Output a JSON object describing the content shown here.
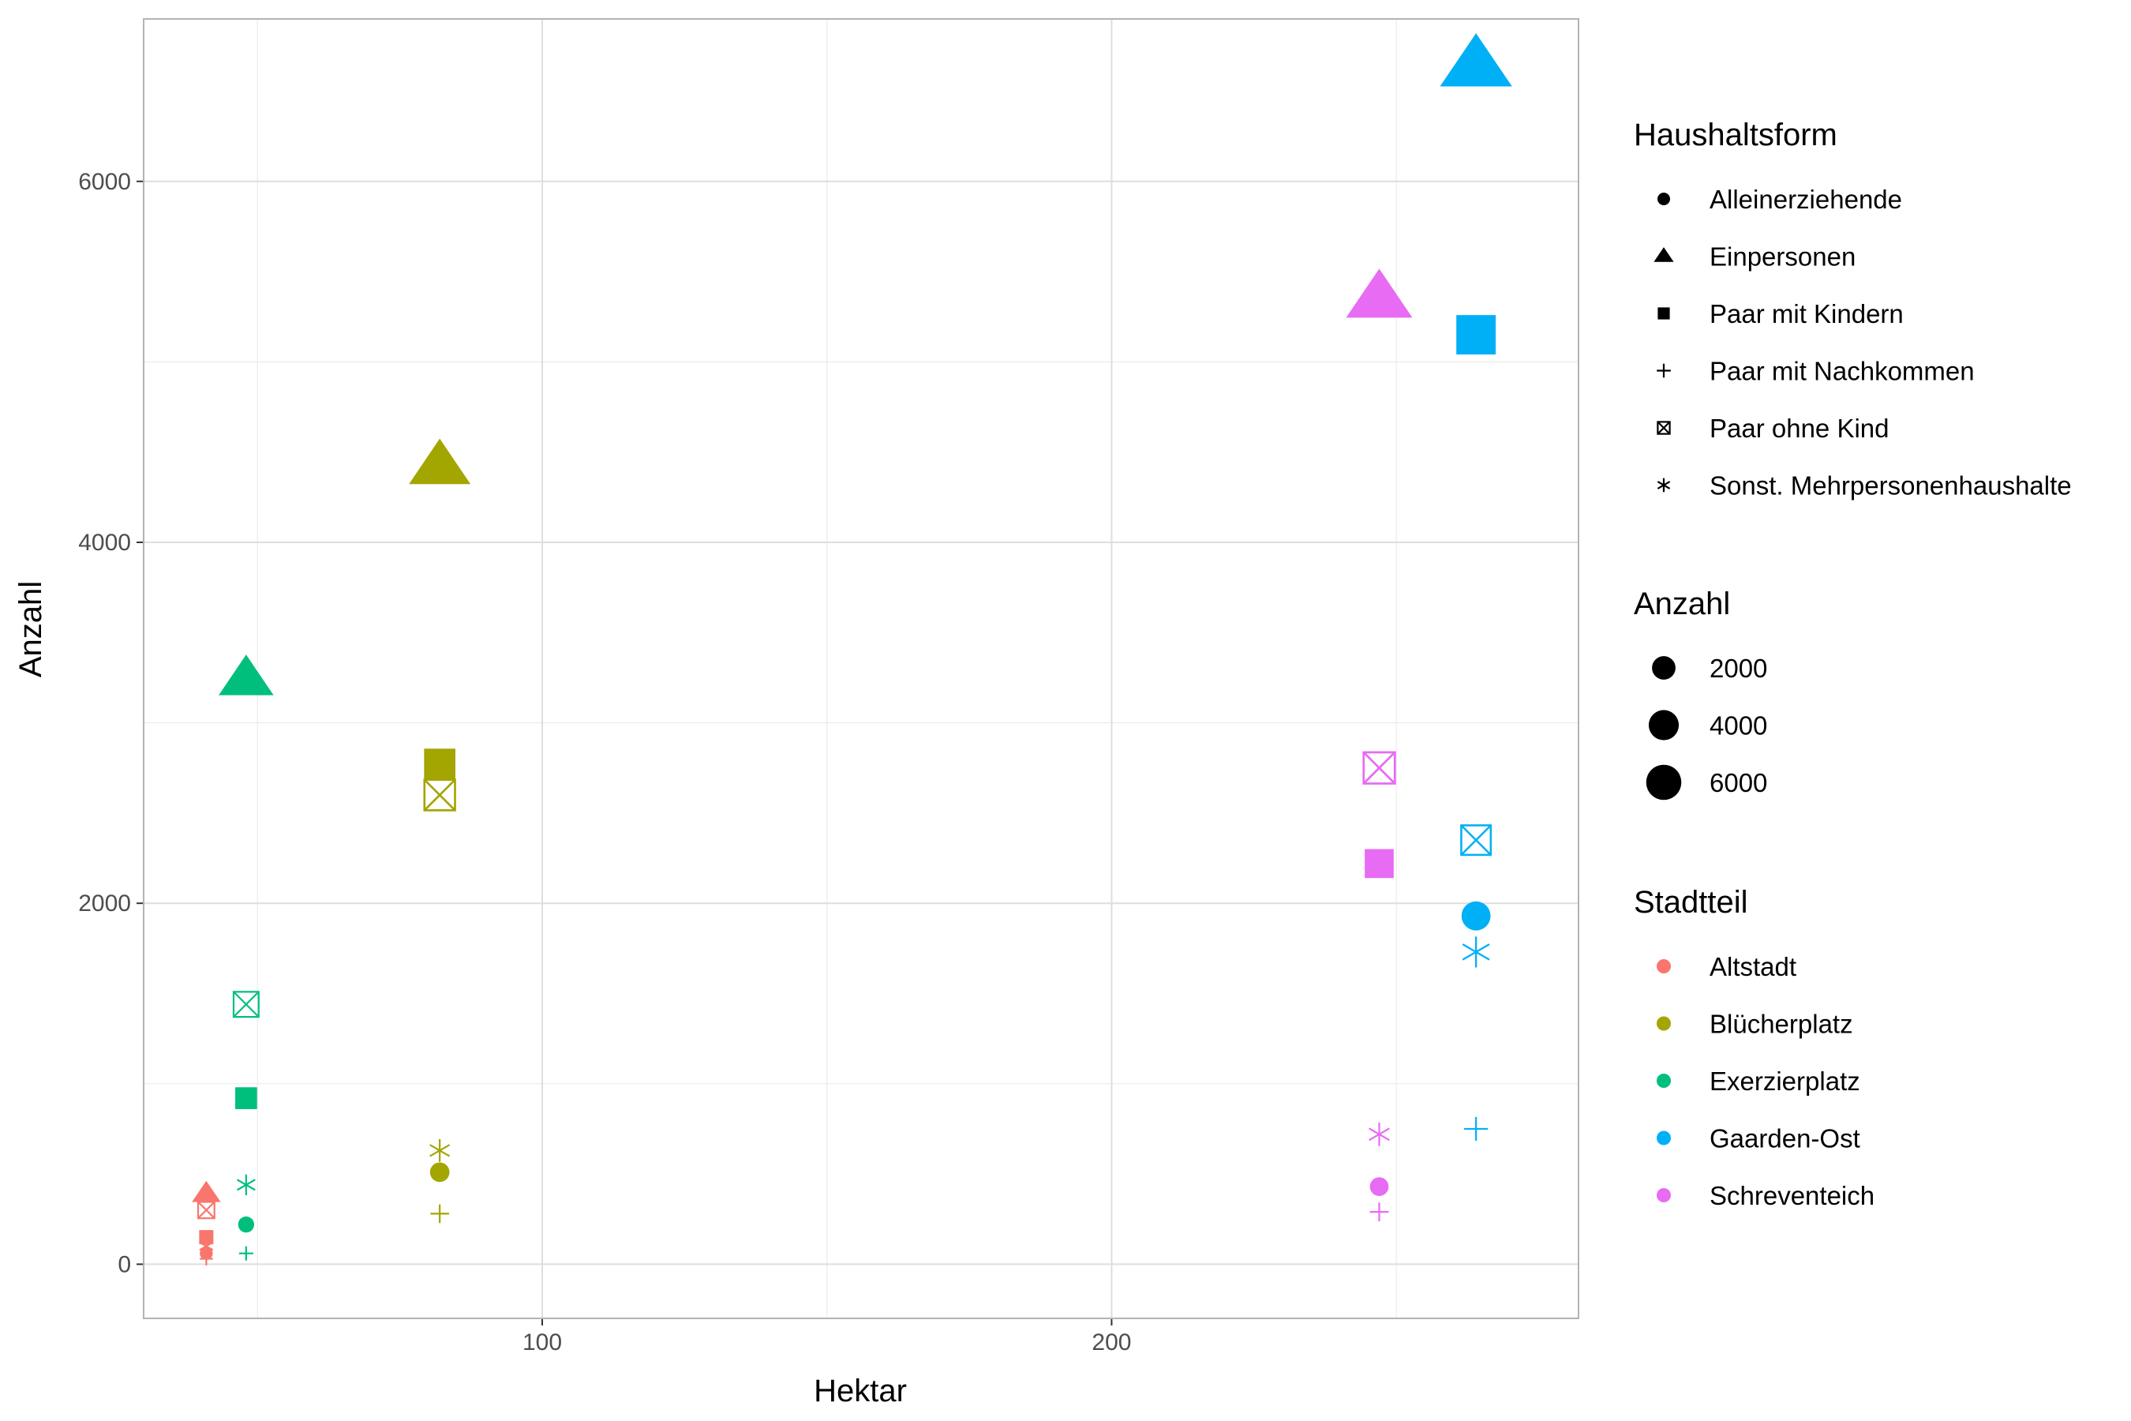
{
  "chart_data": {
    "type": "scatter",
    "title": "",
    "xlabel": "Hektar",
    "ylabel": "Anzahl",
    "xlim": [
      30,
      282
    ],
    "ylim": [
      -300,
      6900
    ],
    "x_ticks": [
      100,
      200
    ],
    "y_ticks": [
      0,
      2000,
      4000,
      6000
    ],
    "grid": true,
    "legend_position": "right",
    "legends": {
      "shape": {
        "title": "Haushaltsform",
        "entries": [
          {
            "label": "Alleinerziehende",
            "shape": "circle"
          },
          {
            "label": "Einpersonen",
            "shape": "triangle"
          },
          {
            "label": "Paar mit Kindern",
            "shape": "square"
          },
          {
            "label": "Paar mit Nachkommen",
            "shape": "plus"
          },
          {
            "label": "Paar ohne Kind",
            "shape": "square-x"
          },
          {
            "label": "Sonst. Mehrpersonenhaushalte",
            "shape": "asterisk"
          }
        ]
      },
      "size": {
        "title": "Anzahl",
        "entries": [
          2000,
          4000,
          6000
        ]
      },
      "color": {
        "title": "Stadtteil",
        "entries": [
          {
            "label": "Altstadt",
            "color": "#F8766D"
          },
          {
            "label": "Blücherplatz",
            "color": "#A3A500"
          },
          {
            "label": "Exerzierplatz",
            "color": "#00BF7D"
          },
          {
            "label": "Gaarden-Ost",
            "color": "#00B0F6"
          },
          {
            "label": "Schreventeich",
            "color": "#E76BF3"
          }
        ]
      }
    },
    "series": [
      {
        "name": "Altstadt",
        "color": "#F8766D",
        "points": [
          {
            "x": 41,
            "y": 390,
            "household": "Einpersonen"
          },
          {
            "x": 41,
            "y": 300,
            "household": "Paar ohne Kind"
          },
          {
            "x": 41,
            "y": 150,
            "household": "Paar mit Kindern"
          },
          {
            "x": 41,
            "y": 100,
            "household": "Sonst. Mehrpersonenhaushalte"
          },
          {
            "x": 41,
            "y": 60,
            "household": "Alleinerziehende"
          },
          {
            "x": 41,
            "y": 30,
            "household": "Paar mit Nachkommen"
          }
        ]
      },
      {
        "name": "Blücherplatz",
        "color": "#A3A500",
        "points": [
          {
            "x": 82,
            "y": 4420,
            "household": "Einpersonen"
          },
          {
            "x": 82,
            "y": 2770,
            "household": "Paar mit Kindern"
          },
          {
            "x": 82,
            "y": 2600,
            "household": "Paar ohne Kind"
          },
          {
            "x": 82,
            "y": 630,
            "household": "Sonst. Mehrpersonenhaushalte"
          },
          {
            "x": 82,
            "y": 510,
            "household": "Alleinerziehende"
          },
          {
            "x": 82,
            "y": 280,
            "household": "Paar mit Nachkommen"
          }
        ]
      },
      {
        "name": "Exerzierplatz",
        "color": "#00BF7D",
        "points": [
          {
            "x": 48,
            "y": 3240,
            "household": "Einpersonen"
          },
          {
            "x": 48,
            "y": 1440,
            "household": "Paar ohne Kind"
          },
          {
            "x": 48,
            "y": 920,
            "household": "Paar mit Kindern"
          },
          {
            "x": 48,
            "y": 440,
            "household": "Sonst. Mehrpersonenhaushalte"
          },
          {
            "x": 48,
            "y": 220,
            "household": "Alleinerziehende"
          },
          {
            "x": 48,
            "y": 60,
            "household": "Paar mit Nachkommen"
          }
        ]
      },
      {
        "name": "Gaarden-Ost",
        "color": "#00B0F6",
        "points": [
          {
            "x": 264,
            "y": 6640,
            "household": "Einpersonen"
          },
          {
            "x": 264,
            "y": 5150,
            "household": "Paar mit Kindern"
          },
          {
            "x": 264,
            "y": 2350,
            "household": "Paar ohne Kind"
          },
          {
            "x": 264,
            "y": 1930,
            "household": "Alleinerziehende"
          },
          {
            "x": 264,
            "y": 1730,
            "household": "Sonst. Mehrpersonenhaushalte"
          },
          {
            "x": 264,
            "y": 750,
            "household": "Paar mit Nachkommen"
          }
        ]
      },
      {
        "name": "Schreventeich",
        "color": "#E76BF3",
        "points": [
          {
            "x": 247,
            "y": 5350,
            "household": "Einpersonen"
          },
          {
            "x": 247,
            "y": 2750,
            "household": "Paar ohne Kind"
          },
          {
            "x": 247,
            "y": 2220,
            "household": "Paar mit Kindern"
          },
          {
            "x": 247,
            "y": 720,
            "household": "Sonst. Mehrpersonenhaushalte"
          },
          {
            "x": 247,
            "y": 430,
            "household": "Alleinerziehende"
          },
          {
            "x": 247,
            "y": 290,
            "household": "Paar mit Nachkommen"
          }
        ]
      }
    ]
  }
}
